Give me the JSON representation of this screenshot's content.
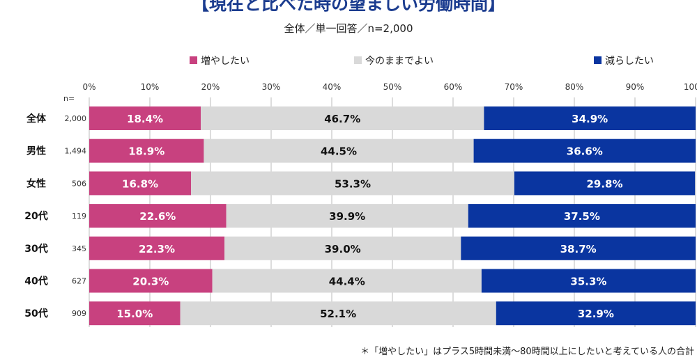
{
  "chart_data": {
    "type": "bar",
    "orientation": "horizontal-stacked-100",
    "title": "【現在と比べた時の望ましい労働時間】",
    "subtitle": "全体／単一回答／n=2,000",
    "n_label": "n=",
    "categories": [
      "全体",
      "男性",
      "女性",
      "20代",
      "30代",
      "40代",
      "50代"
    ],
    "n": [
      "2,000",
      "1,494",
      "506",
      "119",
      "345",
      "627",
      "909"
    ],
    "series": [
      {
        "name": "増やしたい",
        "color": "#c8417f",
        "label_color": "#ffffff",
        "values": [
          18.4,
          18.9,
          16.8,
          22.6,
          22.3,
          20.3,
          15.0
        ]
      },
      {
        "name": "今のままでよい",
        "color": "#d9d9d9",
        "label_color": "#111111",
        "values": [
          46.7,
          44.5,
          53.3,
          39.9,
          39.0,
          44.4,
          52.1
        ]
      },
      {
        "name": "減らしたい",
        "color": "#0a35a0",
        "label_color": "#ffffff",
        "values": [
          34.9,
          36.6,
          29.8,
          37.5,
          38.7,
          35.3,
          32.9
        ]
      }
    ],
    "xlim": [
      0,
      100
    ],
    "xticks": [
      "0%",
      "10%",
      "20%",
      "30%",
      "40%",
      "50%",
      "60%",
      "70%",
      "80%",
      "90%",
      "100%"
    ],
    "legend": "top",
    "footnote": "＊「増やしたい」はプラス5時間未満〜80時間以上にしたいと考えている人の合計"
  }
}
